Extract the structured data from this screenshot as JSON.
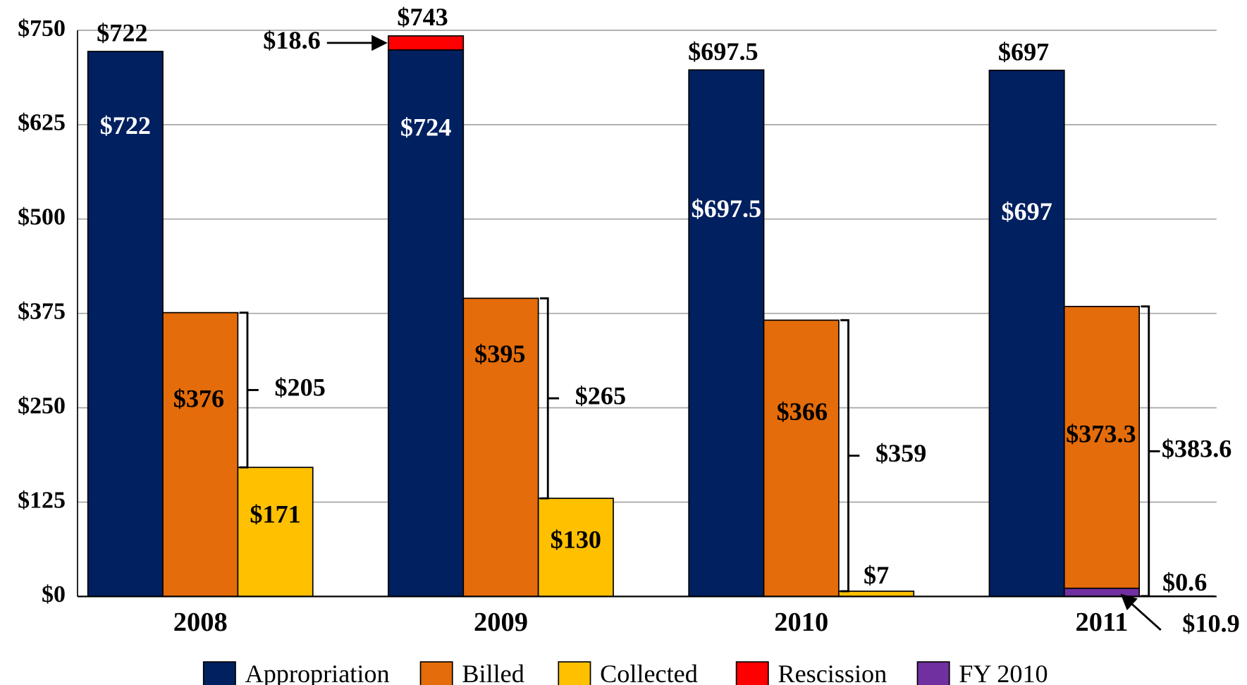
{
  "chart_data": {
    "type": "bar",
    "categories": [
      "2008",
      "2009",
      "2010",
      "2011"
    ],
    "series": [
      {
        "name": "Appropriation",
        "color": "#002060",
        "values": [
          722,
          724,
          697.5,
          697
        ],
        "value_labels": [
          "$722",
          "$724",
          "$697.5",
          "$697"
        ]
      },
      {
        "name": "Billed",
        "color": "#E46C0A",
        "values": [
          376,
          395,
          366,
          373.3
        ],
        "value_labels": [
          "$376",
          "$395",
          "$366",
          "$373.3"
        ]
      },
      {
        "name": "Collected",
        "color": "#FFC000",
        "values": [
          171,
          130,
          7,
          0.6
        ],
        "value_labels": [
          "$171",
          "$130",
          "$7",
          "$0.6"
        ]
      },
      {
        "name": "Rescission",
        "color": "#FF0000",
        "values": [
          null,
          18.6,
          null,
          null
        ],
        "value_labels": [
          null,
          "$18.6",
          null,
          null
        ]
      },
      {
        "name": "FY 2010",
        "color": "#7030A0",
        "values": [
          null,
          null,
          null,
          10.9
        ],
        "value_labels": [
          null,
          null,
          null,
          "$10.9"
        ]
      }
    ],
    "stack_totals": {
      "values": [
        722,
        743,
        697.5,
        697
      ],
      "labels": [
        "$722",
        "$743",
        "$697.5",
        "$697"
      ]
    },
    "brackets": {
      "values": [
        205,
        265,
        359,
        383.6
      ],
      "labels": [
        "$205",
        "$265",
        "$359",
        "$383.6"
      ]
    },
    "ylim": [
      0,
      750
    ],
    "yticks": [
      {
        "value": 0,
        "label": "$0"
      },
      {
        "value": 125,
        "label": "$125"
      },
      {
        "value": 250,
        "label": "$250"
      },
      {
        "value": 375,
        "label": "$375"
      },
      {
        "value": 500,
        "label": "$500"
      },
      {
        "value": 625,
        "label": "$625"
      },
      {
        "value": 750,
        "label": "$750"
      }
    ],
    "grid": true,
    "legend": "bottom"
  }
}
